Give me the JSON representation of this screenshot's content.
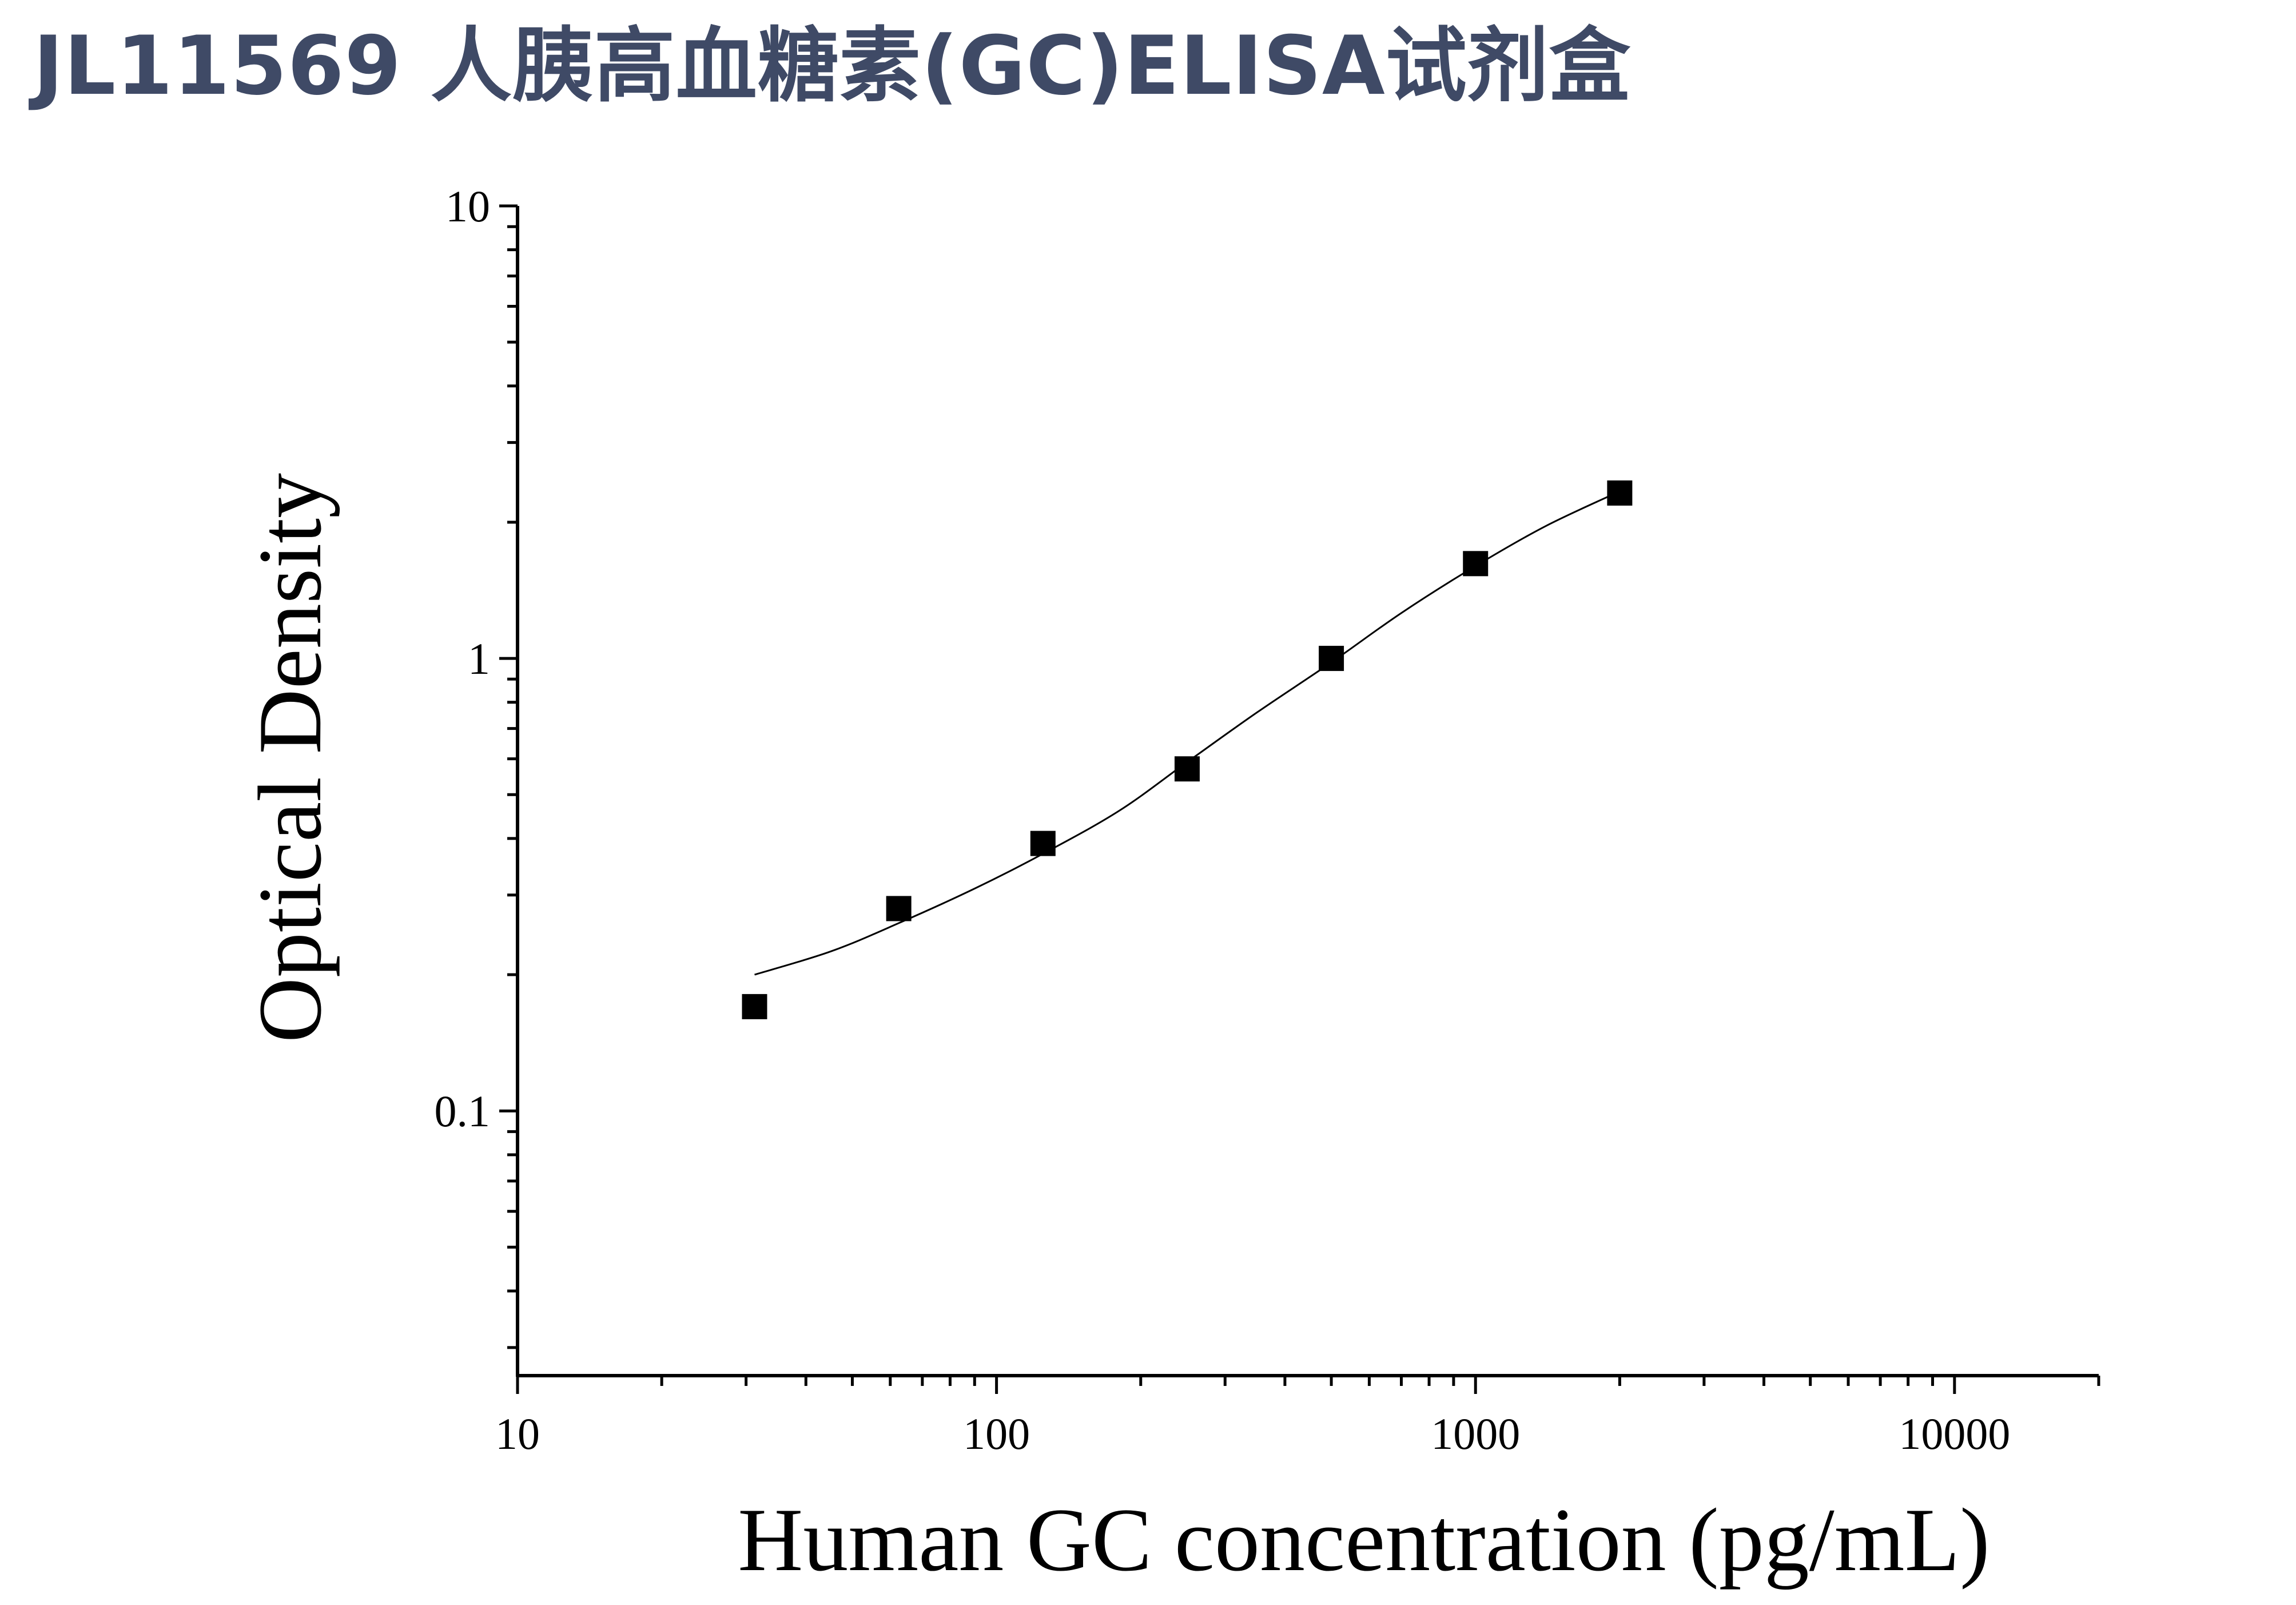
{
  "title": "JL11569 人胰高血糖素(GC)ELISA试剂盒",
  "chart_data": {
    "type": "scatter",
    "xlabel": "Human GC concentration (pg/mL)",
    "ylabel": "Optical Density",
    "xscale": "log",
    "yscale": "log",
    "xlim": [
      10,
      20000
    ],
    "ylim": [
      0.026,
      10
    ],
    "xticks": [
      10,
      100,
      1000,
      10000
    ],
    "xtick_labels": [
      "10",
      "100",
      "1000",
      "10000"
    ],
    "yticks": [
      0.1,
      1,
      10
    ],
    "ytick_labels": [
      "0.1",
      "1",
      "10"
    ],
    "grid": false,
    "series": [
      {
        "marker": "square",
        "points": [
          {
            "x": 31.25,
            "y": 0.17
          },
          {
            "x": 62.5,
            "y": 0.28
          },
          {
            "x": 125,
            "y": 0.39
          },
          {
            "x": 250,
            "y": 0.57
          },
          {
            "x": 500,
            "y": 1.0
          },
          {
            "x": 1000,
            "y": 1.62
          },
          {
            "x": 2000,
            "y": 2.32
          }
        ]
      }
    ],
    "fit_curve": [
      {
        "x": 31.25,
        "y": 0.2
      },
      {
        "x": 45,
        "y": 0.225
      },
      {
        "x": 62.5,
        "y": 0.26
      },
      {
        "x": 90,
        "y": 0.31
      },
      {
        "x": 125,
        "y": 0.37
      },
      {
        "x": 180,
        "y": 0.46
      },
      {
        "x": 250,
        "y": 0.59
      },
      {
        "x": 350,
        "y": 0.76
      },
      {
        "x": 500,
        "y": 0.98
      },
      {
        "x": 700,
        "y": 1.26
      },
      {
        "x": 1000,
        "y": 1.6
      },
      {
        "x": 1400,
        "y": 1.96
      },
      {
        "x": 2000,
        "y": 2.34
      }
    ],
    "colors": {
      "marker": "#000000",
      "curve": "#000000",
      "axes": "#000000",
      "title": "#3f4a66"
    }
  }
}
